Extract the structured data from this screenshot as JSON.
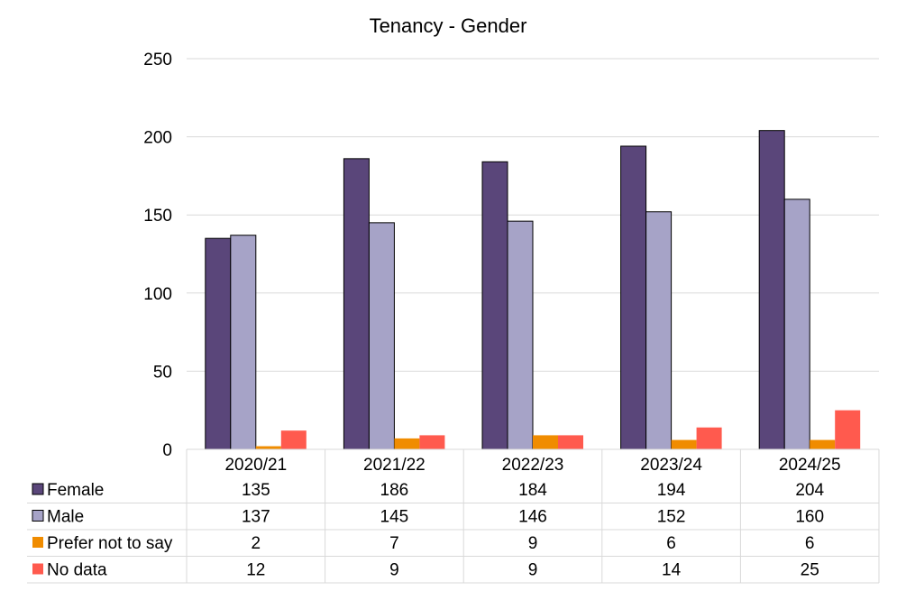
{
  "chart_data": {
    "type": "bar",
    "title": "Tenancy - Gender",
    "categories": [
      "2020/21",
      "2021/22",
      "2022/23",
      "2023/24",
      "2024/25"
    ],
    "ylim": [
      0,
      250
    ],
    "yticks": [
      0,
      50,
      100,
      150,
      200,
      250
    ],
    "grid": true,
    "legend": "data-table-left",
    "series": [
      {
        "name": "Female",
        "color": "#5a467a",
        "values": [
          135,
          186,
          184,
          194,
          204
        ]
      },
      {
        "name": "Male",
        "color": "#a6a3c7",
        "values": [
          137,
          145,
          146,
          152,
          160
        ]
      },
      {
        "name": "Prefer not to say",
        "color": "#f08c00",
        "values": [
          2,
          7,
          9,
          6,
          6
        ]
      },
      {
        "name": "No data",
        "color": "#ff5a4e",
        "values": [
          12,
          9,
          9,
          14,
          25
        ]
      }
    ]
  }
}
